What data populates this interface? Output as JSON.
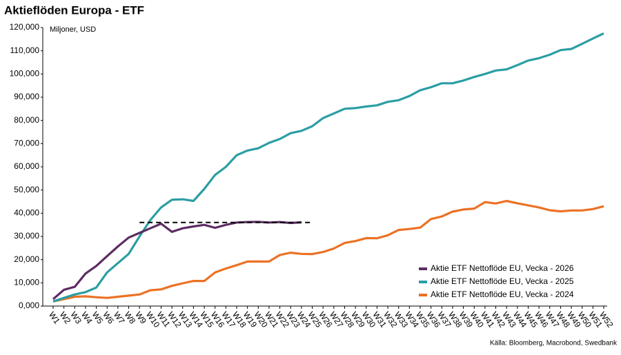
{
  "chart_data": {
    "type": "line",
    "title": "Aktieflöden Europa - ETF",
    "y_label": "Miljoner, USD",
    "source": "Källa: Bloomberg, Macrobond, Swedbank",
    "categories": [
      "W1",
      "W2",
      "W3",
      "W4",
      "W5",
      "W6",
      "W7",
      "W8",
      "W9",
      "W10",
      "W11",
      "W12",
      "W13",
      "W14",
      "W15",
      "W16",
      "W17",
      "W18",
      "W19",
      "W20",
      "W21",
      "W22",
      "W23",
      "W24",
      "W25",
      "W26",
      "W27",
      "W28",
      "W29",
      "W30",
      "W31",
      "W32",
      "W33",
      "W34",
      "W35",
      "W36",
      "W37",
      "W38",
      "W39",
      "W40",
      "W41",
      "W42",
      "W43",
      "W44",
      "W45",
      "W46",
      "W47",
      "W48",
      "W49",
      "W50",
      "W51",
      "W52"
    ],
    "series": [
      {
        "name": "Aktie ETF Nettoflöde EU, Vecka - 2026",
        "color": "#5c2d62",
        "values": [
          3000,
          7000,
          8300,
          14000,
          17300,
          21500,
          25700,
          29500,
          31500,
          33500,
          35500,
          32000,
          33500,
          34300,
          35000,
          33700,
          35000,
          36000,
          36200,
          36300,
          36000,
          36200,
          35800,
          36100,
          null,
          null,
          null,
          null,
          null,
          null,
          null,
          null,
          null,
          null,
          null,
          null,
          null,
          null,
          null,
          null,
          null,
          null,
          null,
          null,
          null,
          null,
          null,
          null,
          null,
          null,
          null,
          null
        ]
      },
      {
        "name": "Aktie ETF Nettoflöde EU, Vecka - 2025",
        "color": "#2a9ea3",
        "values": [
          2000,
          3500,
          5000,
          6000,
          8000,
          14500,
          18500,
          22500,
          30000,
          37000,
          42500,
          45800,
          46000,
          45300,
          50500,
          56500,
          60000,
          65000,
          67000,
          68000,
          70300,
          72000,
          74500,
          75500,
          77500,
          81000,
          83000,
          85000,
          85300,
          86000,
          86500,
          88000,
          88700,
          90500,
          93000,
          94300,
          96000,
          96000,
          97200,
          98700,
          100000,
          101500,
          102000,
          103800,
          105800,
          106800,
          108300,
          110300,
          110800,
          113000,
          115300,
          117500
        ]
      },
      {
        "name": "Aktie ETF Nettoflöde EU, Vecka - 2024",
        "color": "#ec7124",
        "values": [
          2000,
          3000,
          4000,
          4200,
          3800,
          3500,
          4000,
          4500,
          5000,
          6800,
          7200,
          8700,
          9800,
          10800,
          10800,
          14500,
          16200,
          17600,
          19200,
          19200,
          19200,
          22000,
          23000,
          22500,
          22400,
          23300,
          24800,
          27200,
          28000,
          29300,
          29200,
          30500,
          32800,
          33200,
          33800,
          37500,
          38600,
          40700,
          41600,
          42000,
          44800,
          44200,
          45300,
          44300,
          43400,
          42500,
          41300,
          40800,
          41200,
          41200,
          41800,
          43000
        ]
      }
    ],
    "reference_line": {
      "value": 36000,
      "start": "W9",
      "end": "W24",
      "color": "#000000"
    },
    "ylim": [
      0,
      120000
    ],
    "yticks": [
      {
        "value": 0,
        "label": "0,000"
      },
      {
        "value": 10000,
        "label": "10,000"
      },
      {
        "value": 20000,
        "label": "20,000"
      },
      {
        "value": 30000,
        "label": "30,000"
      },
      {
        "value": 40000,
        "label": "40,000"
      },
      {
        "value": 50000,
        "label": "50,000"
      },
      {
        "value": 60000,
        "label": "60,000"
      },
      {
        "value": 70000,
        "label": "70,000"
      },
      {
        "value": 80000,
        "label": "80,000"
      },
      {
        "value": 90000,
        "label": "90,000"
      },
      {
        "value": 100000,
        "label": "100,000"
      },
      {
        "value": 110000,
        "label": "110,000"
      },
      {
        "value": 120000,
        "label": "120,000"
      }
    ],
    "grid": false,
    "legend_position": "lower-right"
  }
}
